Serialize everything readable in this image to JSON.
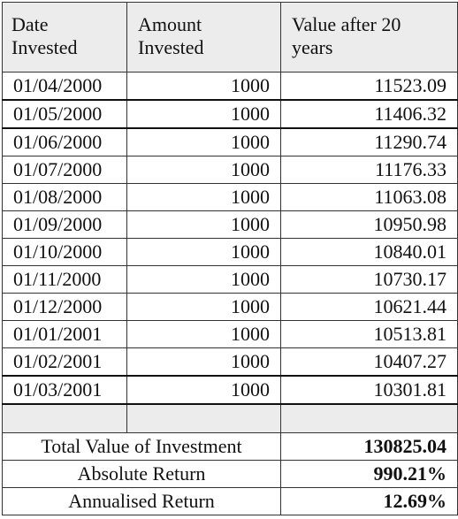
{
  "table": {
    "headers": [
      "Date Invested",
      "Amount Invested",
      "Value after 20 years"
    ],
    "rows": [
      {
        "date": "01/04/2000",
        "amount": "1000",
        "value": "11523.09"
      },
      {
        "date": "01/05/2000",
        "amount": "1000",
        "value": "11406.32"
      },
      {
        "date": "01/06/2000",
        "amount": "1000",
        "value": "11290.74"
      },
      {
        "date": "01/07/2000",
        "amount": "1000",
        "value": "11176.33"
      },
      {
        "date": "01/08/2000",
        "amount": "1000",
        "value": "11063.08"
      },
      {
        "date": "01/09/2000",
        "amount": "1000",
        "value": "10950.98"
      },
      {
        "date": "01/10/2000",
        "amount": "1000",
        "value": "10840.01"
      },
      {
        "date": "01/11/2000",
        "amount": "1000",
        "value": "10730.17"
      },
      {
        "date": "01/12/2000",
        "amount": "1000",
        "value": "10621.44"
      },
      {
        "date": "01/01/2001",
        "amount": "1000",
        "value": "10513.81"
      },
      {
        "date": "01/02/2001",
        "amount": "1000",
        "value": "10407.27"
      },
      {
        "date": "01/03/2001",
        "amount": "1000",
        "value": "10301.81"
      }
    ],
    "summary": [
      {
        "label": "Total Value of Investment",
        "value": "130825.04"
      },
      {
        "label": "Absolute Return",
        "value": "990.21%"
      },
      {
        "label": "Annualised Return",
        "value": "12.69%"
      }
    ]
  }
}
